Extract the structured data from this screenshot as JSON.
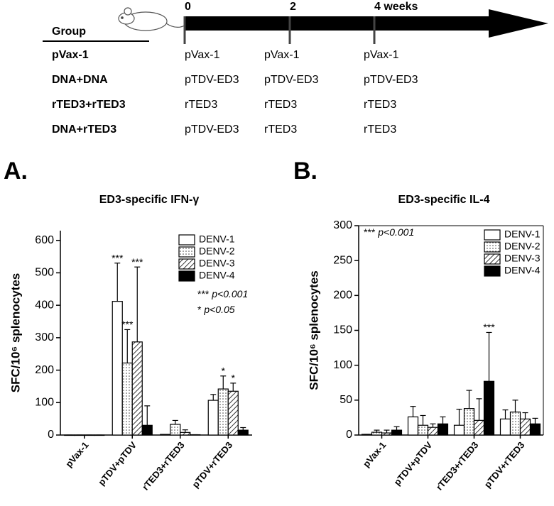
{
  "schedule": {
    "header": "Group",
    "timepoints": [
      "0",
      "2",
      "4 weeks"
    ],
    "rows": [
      {
        "group": "pVax-1",
        "doses": [
          "pVax-1",
          "pVax-1",
          "pVax-1"
        ]
      },
      {
        "group": "DNA+DNA",
        "doses": [
          "pTDV-ED3",
          "pTDV-ED3",
          "pTDV-ED3"
        ]
      },
      {
        "group": "rTED3+rTED3",
        "doses": [
          "rTED3",
          "rTED3",
          "rTED3"
        ]
      },
      {
        "group": "DNA+rTED3",
        "doses": [
          "pTDV-ED3",
          "rTED3",
          "rTED3"
        ]
      }
    ]
  },
  "chart_data": [
    {
      "type": "bar",
      "panel": "A.",
      "title": "ED3-specific IFN-γ",
      "ylabel": "SFC/10⁶ splenocytes",
      "categories": [
        "pVax-1",
        "pTDV+pTDV",
        "rTED3+rTED3",
        "pTDV+rTED3"
      ],
      "series": [
        {
          "name": "DENV-1",
          "pattern": "open",
          "values": [
            0,
            412,
            2,
            107
          ],
          "errors": [
            0,
            118,
            0,
            18
          ],
          "significance": [
            null,
            "***",
            null,
            null
          ]
        },
        {
          "name": "DENV-2",
          "pattern": "dots",
          "values": [
            0,
            222,
            33,
            142
          ],
          "errors": [
            0,
            103,
            12,
            40
          ],
          "significance": [
            null,
            "***",
            null,
            "*"
          ]
        },
        {
          "name": "DENV-3",
          "pattern": "hatch",
          "values": [
            0,
            287,
            8,
            135
          ],
          "errors": [
            0,
            231,
            8,
            25
          ],
          "significance": [
            null,
            "***",
            null,
            "*"
          ]
        },
        {
          "name": "DENV-4",
          "pattern": "solid",
          "values": [
            0,
            30,
            1,
            15
          ],
          "errors": [
            0,
            60,
            0,
            8
          ],
          "significance": [
            null,
            null,
            null,
            null
          ]
        }
      ],
      "ylim": [
        0,
        630
      ],
      "yticks": [
        0,
        100,
        200,
        300,
        400,
        500,
        600
      ],
      "p_notes": [
        {
          "stars": "***",
          "text": "p<0.001"
        },
        {
          "stars": "*",
          "text": "p<0.05"
        }
      ]
    },
    {
      "type": "bar",
      "panel": "B.",
      "title": "ED3-specific IL-4",
      "ylabel": "SFC/10⁶ splenocytes",
      "categories": [
        "pVax-1",
        "pTDV+pTDV",
        "rTED3+rTED3",
        "pTDV+rTED3"
      ],
      "series": [
        {
          "name": "DENV-1",
          "pattern": "open",
          "values": [
            1,
            26,
            14,
            23
          ],
          "errors": [
            0,
            15,
            23,
            13
          ],
          "significance": [
            null,
            null,
            null,
            null
          ]
        },
        {
          "name": "DENV-2",
          "pattern": "dots",
          "values": [
            4,
            14,
            38,
            33
          ],
          "errors": [
            3,
            14,
            26,
            17
          ],
          "significance": [
            null,
            null,
            null,
            null
          ]
        },
        {
          "name": "DENV-3",
          "pattern": "hatch",
          "values": [
            3,
            11,
            21,
            23
          ],
          "errors": [
            4,
            5,
            31,
            9
          ],
          "significance": [
            null,
            null,
            null,
            null
          ]
        },
        {
          "name": "DENV-4",
          "pattern": "solid",
          "values": [
            7,
            16,
            77,
            16
          ],
          "errors": [
            5,
            10,
            70,
            8
          ],
          "significance": [
            null,
            null,
            "***",
            null
          ]
        }
      ],
      "ylim": [
        0,
        300
      ],
      "yticks": [
        0,
        50,
        100,
        150,
        200,
        250,
        300
      ],
      "p_notes": [
        {
          "stars": "***",
          "text": "p<0.001"
        }
      ]
    }
  ]
}
